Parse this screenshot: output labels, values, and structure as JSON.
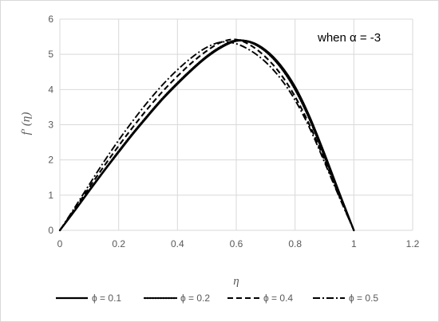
{
  "chart_data": {
    "type": "line",
    "title": "",
    "xlabel": "η",
    "ylabel": "f′ (η)",
    "xlim": [
      0,
      1.2
    ],
    "ylim": [
      0,
      6
    ],
    "x_ticks": [
      "0",
      "0.2",
      "0.4",
      "0.6",
      "0.8",
      "1",
      "1.2"
    ],
    "y_ticks": [
      "0",
      "1",
      "2",
      "3",
      "4",
      "5",
      "6"
    ],
    "grid": true,
    "legend_position": "bottom",
    "annotation": "when α = -3",
    "series": [
      {
        "name": "ϕ = 0.1",
        "line_style": "solid",
        "x": [
          0,
          0.05,
          0.1,
          0.15,
          0.2,
          0.25,
          0.3,
          0.35,
          0.4,
          0.45,
          0.5,
          0.55,
          0.6,
          0.65,
          0.7,
          0.75,
          0.8,
          0.85,
          0.9,
          0.95,
          1.0
        ],
        "y": [
          0,
          0.55,
          1.12,
          1.68,
          2.22,
          2.75,
          3.25,
          3.73,
          4.16,
          4.56,
          4.92,
          5.2,
          5.38,
          5.35,
          5.12,
          4.7,
          4.08,
          3.22,
          2.18,
          1.08,
          0
        ]
      },
      {
        "name": "ϕ = 0.2",
        "line_style": "dotted",
        "x": [
          0,
          0.05,
          0.1,
          0.15,
          0.2,
          0.25,
          0.3,
          0.35,
          0.4,
          0.45,
          0.5,
          0.55,
          0.6,
          0.65,
          0.7,
          0.75,
          0.8,
          0.85,
          0.9,
          0.95,
          1.0
        ],
        "y": [
          0,
          0.56,
          1.14,
          1.7,
          2.25,
          2.78,
          3.28,
          3.76,
          4.19,
          4.59,
          4.95,
          5.23,
          5.4,
          5.33,
          5.08,
          4.64,
          4.0,
          3.14,
          2.1,
          1.04,
          0
        ]
      },
      {
        "name": "ϕ = 0.4",
        "line_style": "dashed",
        "x": [
          0,
          0.05,
          0.1,
          0.15,
          0.2,
          0.25,
          0.3,
          0.35,
          0.4,
          0.45,
          0.5,
          0.55,
          0.6,
          0.65,
          0.7,
          0.75,
          0.8,
          0.85,
          0.9,
          0.95,
          1.0
        ],
        "y": [
          0,
          0.6,
          1.22,
          1.82,
          2.4,
          2.95,
          3.47,
          3.95,
          4.38,
          4.77,
          5.1,
          5.35,
          5.42,
          5.25,
          4.92,
          4.45,
          3.8,
          2.98,
          2.0,
          0.98,
          0
        ]
      },
      {
        "name": "ϕ = 0.5",
        "line_style": "dash-dot",
        "x": [
          0,
          0.05,
          0.1,
          0.15,
          0.2,
          0.25,
          0.3,
          0.35,
          0.4,
          0.45,
          0.5,
          0.55,
          0.6,
          0.65,
          0.7,
          0.75,
          0.8,
          0.85,
          0.9,
          0.95,
          1.0
        ],
        "y": [
          0,
          0.64,
          1.3,
          1.95,
          2.56,
          3.13,
          3.66,
          4.14,
          4.56,
          4.92,
          5.2,
          5.35,
          5.3,
          5.1,
          4.78,
          4.32,
          3.7,
          2.9,
          1.94,
          0.95,
          0
        ]
      }
    ]
  }
}
